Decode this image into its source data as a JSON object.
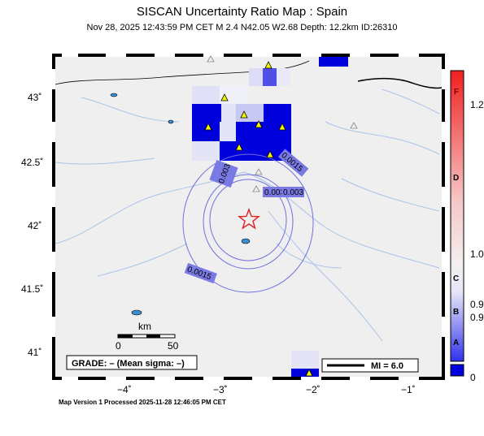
{
  "title": "SISCAN Uncertainty Ratio Map : Spain",
  "subtitle": "Nov 28, 2025 12:43:59 PM CET   M 2.4    N42.05 W2.68    Depth: 12.2km    ID:26310",
  "footer": "Map Version 1 Processed 2025-11-28 12:46:05 PM CET",
  "lat_ticks": [
    "43˚",
    "42.5˚",
    "42˚",
    "41.5˚",
    "41˚"
  ],
  "lon_ticks": [
    "−4˚",
    "−3˚",
    "−2˚",
    "−1˚"
  ],
  "scale": {
    "unit": "km",
    "zero": "0",
    "max": "50"
  },
  "grade": "GRADE: – (Mean sigma: –)",
  "mi_legend": "MI = 6.0",
  "contours": [
    "0.003",
    "0.003",
    "0.003",
    "0.0015",
    "0.0015"
  ],
  "colorbar": {
    "right_labels": [
      "1.2",
      "1.0",
      "0.9",
      "0.9",
      "0"
    ],
    "grades": [
      "F",
      "D",
      "C",
      "B",
      "A"
    ]
  },
  "colors": {
    "land": "#efefef",
    "rivers": "#aac4e8",
    "cell_strong": "#0000dd",
    "cell_light": "#dcdcf6",
    "contour": "#7070e0",
    "epicenter": "#e02020",
    "station": "#f5f500"
  }
}
